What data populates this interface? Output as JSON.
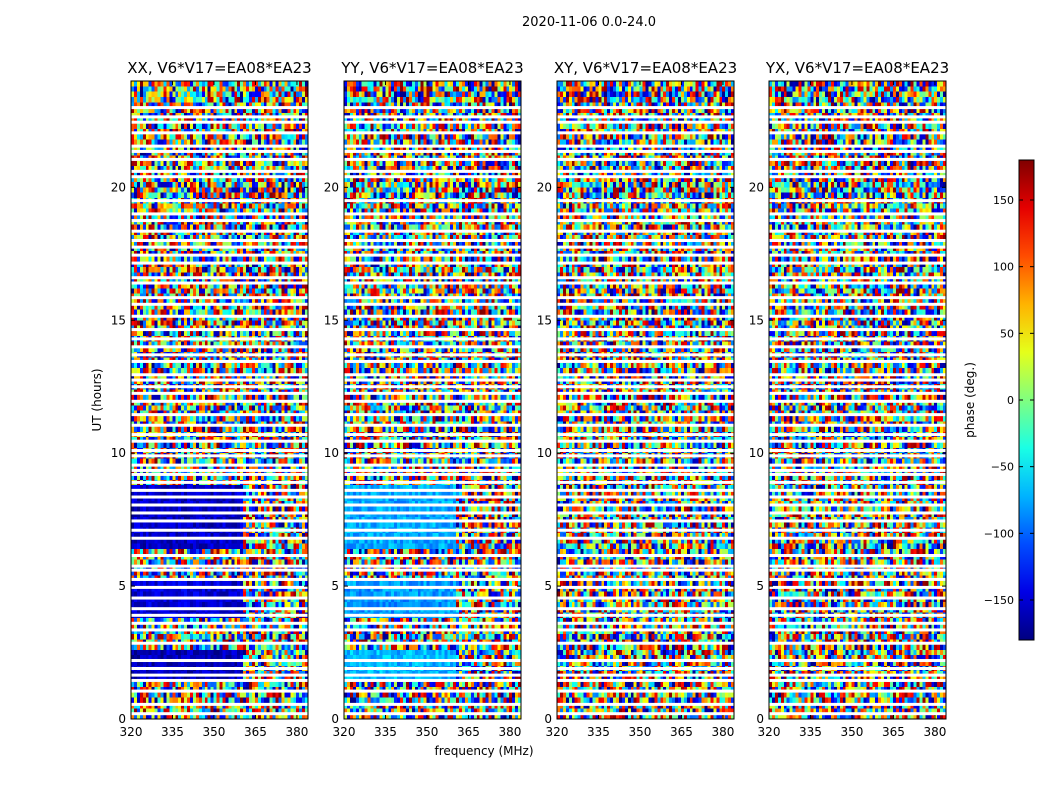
{
  "chart_data": {
    "type": "heatmap",
    "title": "2020-11-06 0.0-24.0",
    "xlabel": "frequency (MHz)",
    "ylabel": "UT (hours)",
    "xlim": [
      320,
      384
    ],
    "ylim": [
      0,
      24
    ],
    "xticks": [
      "320",
      "335",
      "350",
      "365",
      "380"
    ],
    "yticks": [
      "0",
      "5",
      "10",
      "15",
      "20"
    ],
    "colormap": "jet",
    "colorbar": {
      "label": "phase (deg.)",
      "range": [
        -180,
        180
      ],
      "ticks": [
        "150",
        "100",
        "50",
        "0",
        "−50",
        "−100",
        "−150"
      ],
      "tick_values": [
        150,
        100,
        50,
        0,
        -50,
        -100,
        -150
      ]
    },
    "flagged_utc_hours": [
      0.2,
      0.55,
      1.05,
      1.45,
      1.65,
      1.9,
      2.2,
      2.85,
      3.35,
      3.6,
      3.9,
      4.15,
      4.55,
      4.95,
      5.25,
      5.6,
      5.75,
      6.15,
      6.8,
      7.1,
      7.45,
      7.75,
      8.05,
      8.35,
      8.6,
      8.9,
      9.2,
      9.35,
      9.55,
      9.9,
      10.1,
      10.45,
      10.7,
      11.05,
      11.45,
      11.95,
      12.25,
      12.5,
      12.75,
      12.95,
      13.45,
      13.7,
      14.0,
      14.3,
      14.65,
      15.15,
      15.6,
      15.85,
      16.4,
      16.6,
      17.15,
      17.45,
      17.75,
      18.0,
      18.35,
      18.75,
      19.0,
      19.5,
      20.4,
      20.6,
      21.05,
      21.35,
      21.55,
      22.05,
      22.45,
      22.65,
      23.0
    ],
    "panels": [
      {
        "title": "XX, V6*V17=EA08*EA23",
        "coherent_regions": [
          {
            "ut_start": 6.3,
            "ut_end": 8.8,
            "freq_start": 320,
            "freq_end": 361,
            "phase_deg": -155
          },
          {
            "ut_start": 3.8,
            "ut_end": 5.2,
            "freq_start": 320,
            "freq_end": 361,
            "phase_deg": -150
          },
          {
            "ut_start": 1.5,
            "ut_end": 2.6,
            "freq_start": 320,
            "freq_end": 361,
            "phase_deg": -160
          }
        ]
      },
      {
        "title": "YY, V6*V17=EA08*EA23",
        "coherent_regions": [
          {
            "ut_start": 6.3,
            "ut_end": 8.8,
            "freq_start": 320,
            "freq_end": 361,
            "phase_deg": -75
          },
          {
            "ut_start": 3.8,
            "ut_end": 5.2,
            "freq_start": 320,
            "freq_end": 361,
            "phase_deg": -80
          },
          {
            "ut_start": 1.5,
            "ut_end": 2.6,
            "freq_start": 320,
            "freq_end": 361,
            "phase_deg": -70
          }
        ]
      },
      {
        "title": "XY, V6*V17=EA08*EA23",
        "coherent_regions": []
      },
      {
        "title": "YX, V6*V17=EA08*EA23",
        "coherent_regions": []
      }
    ]
  }
}
